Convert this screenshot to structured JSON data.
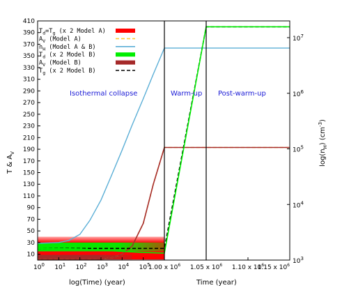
{
  "chart_data": {
    "type": "line",
    "y_axis_left": {
      "label": "T & A",
      "label_sub": "V",
      "ylim": [
        0,
        410
      ],
      "ticks": [
        10,
        30,
        50,
        70,
        90,
        110,
        130,
        150,
        170,
        190,
        210,
        230,
        250,
        270,
        290,
        310,
        330,
        350,
        370,
        390,
        410
      ]
    },
    "y_axis_right": {
      "label_prefix": "log(n",
      "label_sub": "H",
      "label_suffix": ") (cm",
      "label_sup": "-3",
      "label_end": ")",
      "scale": "log",
      "ylim": [
        1000,
        20000000
      ],
      "ticks": [
        {
          "value": 1000,
          "base": "10",
          "exp": "3"
        },
        {
          "value": 10000,
          "base": "10",
          "exp": "4"
        },
        {
          "value": 100000,
          "base": "10",
          "exp": "5"
        },
        {
          "value": 1000000,
          "base": "10",
          "exp": "6"
        },
        {
          "value": 10000000,
          "base": "10",
          "exp": "7"
        }
      ]
    },
    "panel_left": {
      "xlabel": "log(Time) (year)",
      "scale": "log",
      "xlim": [
        1,
        1000000
      ],
      "ticks": [
        {
          "value": 1,
          "base": "10",
          "exp": "0"
        },
        {
          "value": 10,
          "base": "10",
          "exp": "1"
        },
        {
          "value": 100,
          "base": "10",
          "exp": "2"
        },
        {
          "value": 1000,
          "base": "10",
          "exp": "3"
        },
        {
          "value": 10000,
          "base": "10",
          "exp": "4"
        },
        {
          "value": 100000,
          "base": "10",
          "exp": "5"
        }
      ],
      "phase_label": "Isothermal collapse"
    },
    "panel_right": {
      "xlabel": "Time (year)",
      "xlim": [
        1000000,
        1150000
      ],
      "ticks": [
        {
          "value": 1000000,
          "mant": "1.00 x 10",
          "exp": "6"
        },
        {
          "value": 1050000,
          "mant": "1.05 x 10",
          "exp": "6"
        },
        {
          "value": 1100000,
          "mant": "1.10 x 10",
          "exp": "6"
        },
        {
          "value": 1150000,
          "mant": "1.15 x 10",
          "exp": "6"
        }
      ],
      "phase_labels": [
        "Warm-up",
        "Post-warm-up"
      ],
      "divider_x": 1050000
    },
    "legend": [
      {
        "pre": "T",
        "sub1": "d",
        "mid": "=T",
        "sub2": "g",
        "post": " (x 2 Model A)",
        "style": "band",
        "color": "#ff0000"
      },
      {
        "pre": "A",
        "sub1": "V",
        "mid": "",
        "sub2": "",
        "post": " (Model A)",
        "style": "dashed",
        "color": "#ffcc33"
      },
      {
        "pre": "n",
        "sub1": "H",
        "mid": "",
        "sub2": "",
        "post": " (Model A & B)",
        "style": "line",
        "color": "#5aaed6"
      },
      {
        "pre": "T",
        "sub1": "d",
        "mid": "",
        "sub2": "",
        "post": " (x 2 Model B)",
        "style": "band",
        "color": "#00ee00"
      },
      {
        "pre": "A",
        "sub1": "V",
        "mid": "",
        "sub2": "",
        "post": " (Model B)",
        "style": "band",
        "color": "#a52a2a"
      },
      {
        "pre": "T",
        "sub1": "g",
        "mid": "",
        "sub2": "",
        "post": " (x 2 Model B)",
        "style": "dashed",
        "color": "#000000"
      }
    ],
    "series": [
      {
        "name_ref": "n_H (Model A & B)",
        "color": "#5aaed6",
        "axis": "right",
        "left_x": [
          1,
          10,
          30,
          100,
          300,
          1000,
          3000,
          10000,
          30000,
          100000,
          300000,
          1000000
        ],
        "left_y": [
          2000,
          2070,
          2250,
          2900,
          5200,
          12000,
          32000,
          95000,
          270000,
          800000,
          2200000,
          6500000
        ],
        "right_x": [
          1000000,
          1150000
        ],
        "right_y": [
          6500000,
          6500000
        ]
      },
      {
        "name_ref": "A_V (Model A)",
        "color": "#ffcc33",
        "axis": "left",
        "dashed": true,
        "left_x": [
          1,
          100,
          1000,
          3000,
          10000,
          30000,
          100000,
          300000,
          1000000
        ],
        "left_y": [
          0.5,
          0.6,
          1.5,
          3.5,
          10,
          24,
          63,
          130,
          193
        ],
        "right_x": [
          1000000,
          1150000
        ],
        "right_y": [
          193,
          193
        ]
      },
      {
        "name_ref": "A_V (Model B)",
        "color": "#a52a2a",
        "axis": "left",
        "left_x": [
          1,
          100,
          1000,
          3000,
          10000,
          30000,
          100000,
          300000,
          1000000
        ],
        "left_y": [
          0.5,
          0.6,
          1.5,
          3.5,
          10,
          24,
          63,
          130,
          193
        ],
        "right_x": [
          1000000,
          1150000
        ],
        "right_y": [
          193,
          193
        ]
      },
      {
        "name_ref": "T_d = T_g (x 2 Model A)",
        "color": "#000000",
        "axis": "left",
        "dashed": true,
        "left_x": [
          1,
          1000000
        ],
        "left_y": [
          20,
          20
        ],
        "right_x": [
          1000000,
          1050000,
          1150000
        ],
        "right_y": [
          20,
          400,
          400
        ]
      },
      {
        "name_ref": "T_d (x 2 Model B)",
        "color": "#00ee00",
        "axis": "left",
        "left_x": [
          1,
          100,
          1000,
          10000,
          100000,
          1000000
        ],
        "left_y": [
          20,
          19,
          17,
          15,
          13,
          12
        ],
        "right_x": [
          1000000,
          1050000,
          1150000
        ],
        "right_y": [
          12,
          400,
          400
        ]
      }
    ],
    "bands": [
      {
        "color": "#ff0000",
        "x_from": 1,
        "x_to": 1000000,
        "y_low": 1,
        "y_high": 40,
        "shape": "fade_top"
      },
      {
        "color": "#00ee00",
        "x_from": 1,
        "x_to": 1000000,
        "y_low": 15,
        "y_high": 30,
        "shape": "fade_right"
      },
      {
        "color": "#a52a2a",
        "x_from": 1,
        "x_to": 30000,
        "y_low": 1,
        "y_high": 9,
        "shape": "fade_right"
      }
    ]
  }
}
